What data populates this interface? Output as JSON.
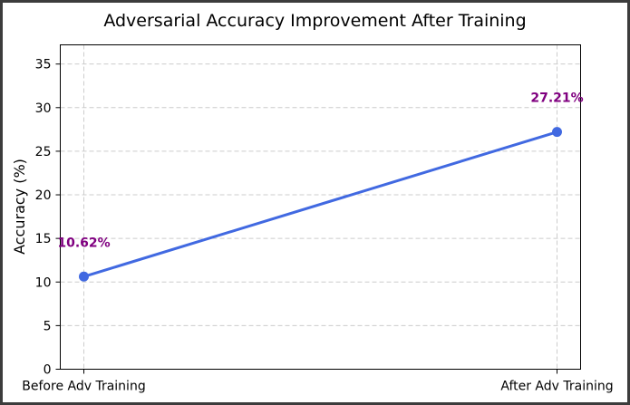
{
  "chart_data": {
    "type": "line",
    "title": "Adversarial Accuracy Improvement After Training",
    "xlabel": "",
    "ylabel": "Accuracy (%)",
    "categories": [
      "Before Adv Training",
      "After Adv Training"
    ],
    "series": [
      {
        "values": [
          10.62,
          27.21
        ],
        "color": "#4169e1"
      }
    ],
    "data_labels": [
      "10.62%",
      "27.21%"
    ],
    "data_label_color": "#800080",
    "ylim": [
      0,
      37.2
    ],
    "yticks": [
      0,
      5,
      10,
      15,
      20,
      25,
      30,
      35
    ],
    "grid": true,
    "grid_style": "dashed"
  }
}
